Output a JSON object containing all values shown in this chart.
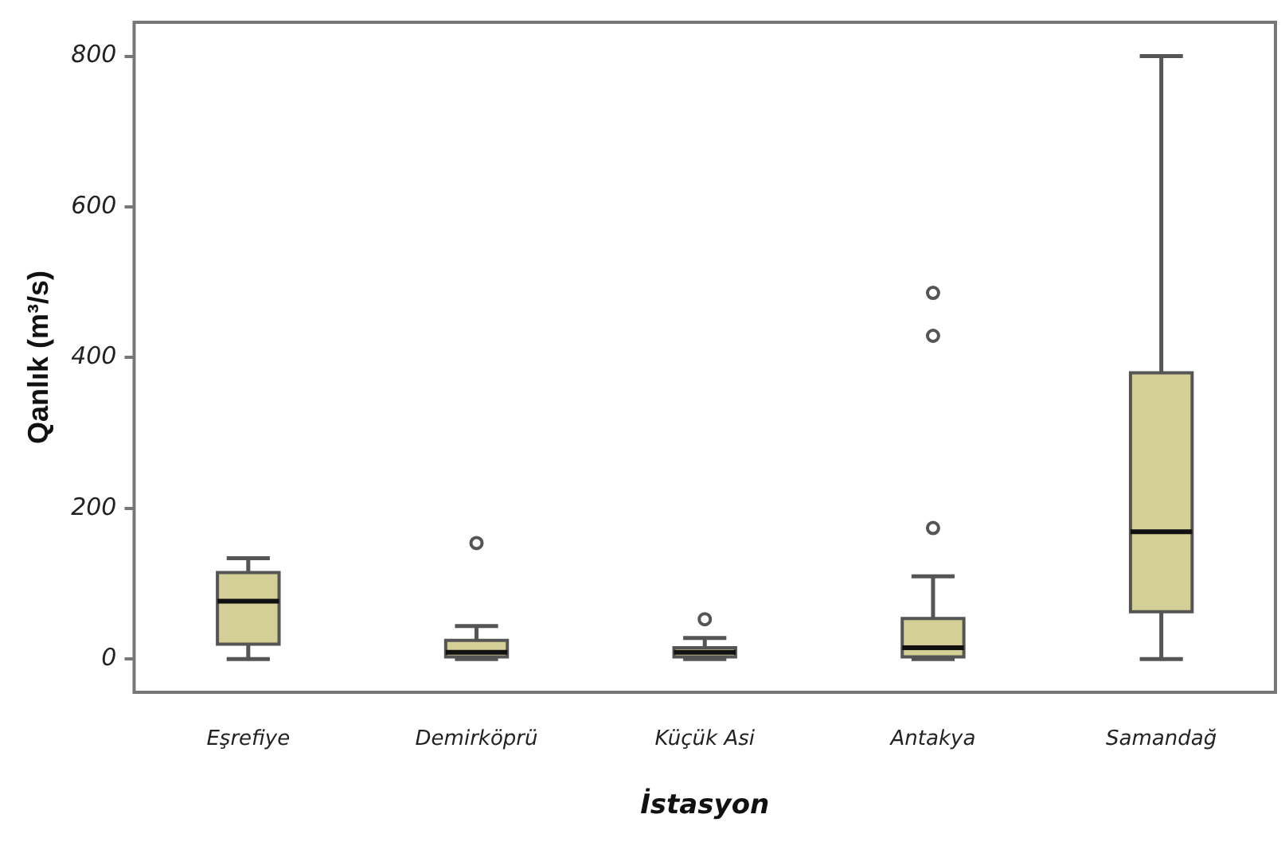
{
  "chart_data": {
    "type": "box",
    "xlabel": "İstasyon",
    "ylabel": "Qanlık (m³/s)",
    "categories": [
      "Eşrefiye",
      "Demirköprü",
      "Küçük Asi",
      "Antakya",
      "Samandağ"
    ],
    "boxes": [
      {
        "low": 0,
        "q1": 20,
        "median": 77,
        "q3": 115,
        "high": 134
      },
      {
        "low": 0,
        "q1": 3,
        "median": 9,
        "q3": 25,
        "high": 44,
        "outliers": [
          154
        ]
      },
      {
        "low": 0,
        "q1": 3,
        "median": 9,
        "q3": 15,
        "high": 28,
        "outliers": [
          53
        ]
      },
      {
        "low": 0,
        "q1": 3,
        "median": 15,
        "q3": 54,
        "high": 110,
        "outliers": [
          174,
          429,
          486
        ]
      },
      {
        "low": 0,
        "q1": 63,
        "median": 169,
        "q3": 380,
        "high": 800
      }
    ],
    "color": "#d4cf96",
    "ylim": [
      -44,
      845
    ],
    "yticks": [
      0,
      200,
      400,
      600,
      800
    ],
    "grid": false,
    "legend": false
  }
}
